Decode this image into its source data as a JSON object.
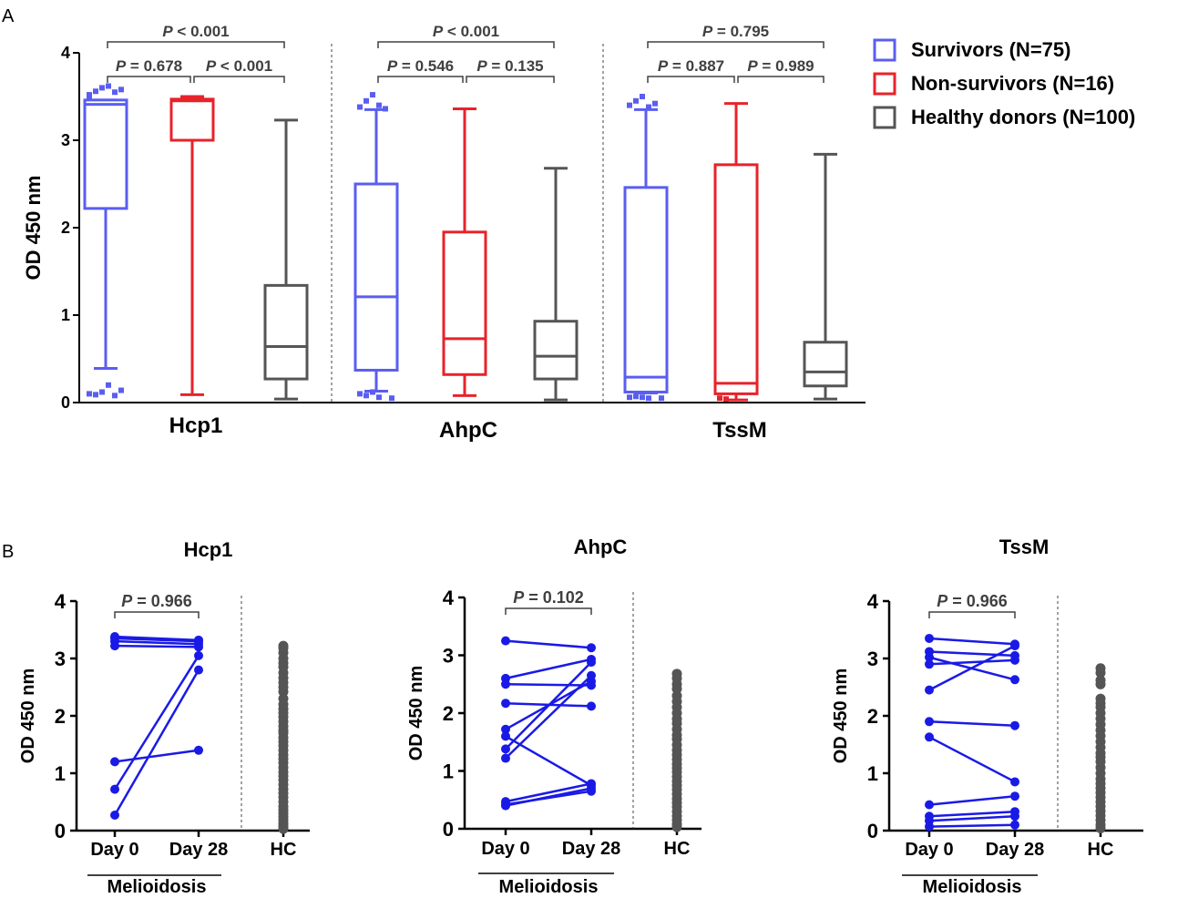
{
  "panel_labels": {
    "a": "A",
    "b": "B"
  },
  "chart_data": [
    {
      "type": "box",
      "panel": "A",
      "ylabel": "OD 450 nm",
      "ylim": [
        0,
        4
      ],
      "yticks": [
        "0",
        "1",
        "2",
        "3",
        "4"
      ],
      "groups": [
        "Hcp1",
        "AhpC",
        "TssM"
      ],
      "legend": [
        {
          "label": "Survivors (N=75)",
          "color": "#5a5ef0"
        },
        {
          "label": "Non-survivors (N=16)",
          "color": "#e8222a"
        },
        {
          "label": "Healthy donors (N=100)",
          "color": "#555555"
        }
      ],
      "boxes": [
        {
          "group": 0,
          "series": 0,
          "whisker_low": 0.39,
          "q1": 2.22,
          "median": 3.41,
          "q3": 3.46,
          "whisker_high": 3.46,
          "outliers_high": [
            3.52,
            3.56,
            3.6,
            3.62,
            3.55,
            3.58,
            3.5
          ],
          "outliers_low": [
            0.09,
            0.12,
            0.2,
            0.08,
            0.14,
            0.1
          ]
        },
        {
          "group": 0,
          "series": 1,
          "whisker_low": 0.09,
          "q1": 3.0,
          "median": 3.45,
          "q3": 3.47,
          "whisker_high": 3.5,
          "outliers_high": [],
          "outliers_low": []
        },
        {
          "group": 0,
          "series": 2,
          "whisker_low": 0.04,
          "q1": 0.27,
          "median": 0.64,
          "q3": 1.34,
          "whisker_high": 3.23,
          "outliers_high": [],
          "outliers_low": []
        },
        {
          "group": 1,
          "series": 0,
          "whisker_low": 0.13,
          "q1": 0.37,
          "median": 1.21,
          "q3": 2.5,
          "whisker_high": 3.35,
          "outliers_high": [
            3.38,
            3.45,
            3.52,
            3.4,
            3.36
          ],
          "outliers_low": [
            0.05,
            0.1,
            0.08,
            0.12,
            0.06
          ]
        },
        {
          "group": 1,
          "series": 1,
          "whisker_low": 0.08,
          "q1": 0.32,
          "median": 0.73,
          "q3": 1.95,
          "whisker_high": 3.36,
          "outliers_high": [],
          "outliers_low": []
        },
        {
          "group": 1,
          "series": 2,
          "whisker_low": 0.03,
          "q1": 0.27,
          "median": 0.53,
          "q3": 0.93,
          "whisker_high": 2.68,
          "outliers_high": [],
          "outliers_low": []
        },
        {
          "group": 2,
          "series": 0,
          "whisker_low": 0.11,
          "q1": 0.12,
          "median": 0.29,
          "q3": 2.46,
          "whisker_high": 3.35,
          "outliers_high": [
            3.4,
            3.45,
            3.5,
            3.38,
            3.42
          ],
          "outliers_low": [
            0.05,
            0.06,
            0.07,
            0.06,
            0.05
          ]
        },
        {
          "group": 2,
          "series": 1,
          "whisker_low": 0.03,
          "q1": 0.1,
          "median": 0.22,
          "q3": 2.72,
          "whisker_high": 3.42,
          "outliers_high": [],
          "outliers_low": [
            0.05,
            0.04
          ]
        },
        {
          "group": 2,
          "series": 2,
          "whisker_low": 0.04,
          "q1": 0.19,
          "median": 0.35,
          "q3": 0.69,
          "whisker_high": 2.84,
          "outliers_high": [],
          "outliers_low": []
        }
      ],
      "comparisons": [
        {
          "group": 0,
          "from": 0,
          "to": 2,
          "tier": 2,
          "label": "P < 0.001"
        },
        {
          "group": 0,
          "from": 0,
          "to": 1,
          "tier": 1,
          "label": "P = 0.678"
        },
        {
          "group": 0,
          "from": 1,
          "to": 2,
          "tier": 1,
          "label": "P < 0.001"
        },
        {
          "group": 1,
          "from": 0,
          "to": 2,
          "tier": 2,
          "label": "P < 0.001"
        },
        {
          "group": 1,
          "from": 0,
          "to": 1,
          "tier": 1,
          "label": "P = 0.546"
        },
        {
          "group": 1,
          "from": 1,
          "to": 2,
          "tier": 1,
          "label": "P = 0.135"
        },
        {
          "group": 2,
          "from": 0,
          "to": 2,
          "tier": 2,
          "label": "P = 0.795"
        },
        {
          "group": 2,
          "from": 0,
          "to": 1,
          "tier": 1,
          "label": "P = 0.887"
        },
        {
          "group": 2,
          "from": 1,
          "to": 2,
          "tier": 1,
          "label": "P = 0.989"
        }
      ]
    },
    {
      "type": "paired-scatter",
      "panel": "B",
      "title": "Hcp1",
      "ylabel": "OD 450 nm",
      "ylim": [
        0,
        4
      ],
      "yticks": [
        "0",
        "1",
        "2",
        "3",
        "4"
      ],
      "categories": [
        "Day 0",
        "Day 28",
        "HC"
      ],
      "group_label": "Melioidosis",
      "comparison": "P = 0.966",
      "pairs": [
        [
          3.38,
          3.32
        ],
        [
          3.35,
          3.3
        ],
        [
          3.3,
          3.25
        ],
        [
          3.22,
          3.2
        ],
        [
          1.2,
          1.4
        ],
        [
          0.72,
          3.05
        ],
        [
          0.27,
          2.8
        ]
      ],
      "hc": [
        3.22,
        3.18,
        3.1,
        3.0,
        2.92,
        2.85,
        2.75,
        2.66,
        2.58,
        2.5,
        2.42,
        2.3,
        2.2,
        2.12,
        2.05,
        1.98,
        1.9,
        1.82,
        1.75,
        1.7,
        1.62,
        1.55,
        1.48,
        1.4,
        1.32,
        1.25,
        1.18,
        1.1,
        1.02,
        0.95,
        0.88,
        0.8,
        0.72,
        0.65,
        0.58,
        0.5,
        0.42,
        0.36,
        0.3,
        0.24,
        0.18,
        0.12,
        0.07,
        0.03
      ]
    },
    {
      "type": "paired-scatter",
      "panel": "B",
      "title": "AhpC",
      "ylabel": "OD 450 nm",
      "ylim": [
        0,
        4
      ],
      "yticks": [
        "0",
        "1",
        "2",
        "3",
        "4"
      ],
      "categories": [
        "Day 0",
        "Day 28",
        "HC"
      ],
      "group_label": "Melioidosis",
      "comparison": "P = 0.102",
      "pairs": [
        [
          3.25,
          3.13
        ],
        [
          2.6,
          2.93
        ],
        [
          2.5,
          2.48
        ],
        [
          2.17,
          2.12
        ],
        [
          1.72,
          2.55
        ],
        [
          1.6,
          0.75
        ],
        [
          1.38,
          2.88
        ],
        [
          1.22,
          2.65
        ],
        [
          0.47,
          0.78
        ],
        [
          0.42,
          0.65
        ],
        [
          0.4,
          0.7
        ]
      ],
      "hc": [
        2.68,
        2.6,
        2.5,
        2.42,
        2.3,
        2.2,
        2.1,
        2.0,
        1.9,
        1.82,
        1.72,
        1.62,
        1.55,
        1.45,
        1.36,
        1.28,
        1.2,
        1.12,
        1.05,
        0.98,
        0.9,
        0.82,
        0.75,
        0.68,
        0.6,
        0.52,
        0.45,
        0.38,
        0.3,
        0.22,
        0.15,
        0.08,
        0.03
      ]
    },
    {
      "type": "paired-scatter",
      "panel": "B",
      "title": "TssM",
      "ylabel": "OD 450 nm",
      "ylim": [
        0,
        4
      ],
      "yticks": [
        "0",
        "1",
        "2",
        "3",
        "4"
      ],
      "categories": [
        "Day 0",
        "Day 28",
        "HC"
      ],
      "group_label": "Melioidosis",
      "comparison": "P = 0.966",
      "pairs": [
        [
          3.35,
          3.25
        ],
        [
          3.12,
          3.05
        ],
        [
          3.02,
          2.63
        ],
        [
          2.9,
          2.97
        ],
        [
          2.45,
          3.22
        ],
        [
          1.9,
          1.83
        ],
        [
          1.63,
          0.85
        ],
        [
          0.45,
          0.6
        ],
        [
          0.25,
          0.33
        ],
        [
          0.17,
          0.25
        ],
        [
          0.07,
          0.1
        ]
      ],
      "hc": [
        2.83,
        2.75,
        2.62,
        2.55,
        2.3,
        2.22,
        2.15,
        2.05,
        1.95,
        1.85,
        1.75,
        1.65,
        1.55,
        1.45,
        1.35,
        1.28,
        1.2,
        1.1,
        1.0,
        0.9,
        0.82,
        0.74,
        0.66,
        0.58,
        0.5,
        0.42,
        0.34,
        0.26,
        0.18,
        0.1,
        0.04
      ]
    }
  ]
}
